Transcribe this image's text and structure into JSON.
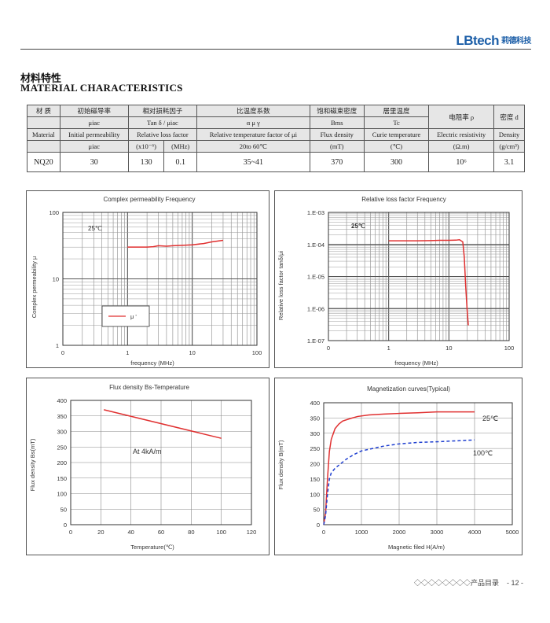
{
  "brand": {
    "logo": "LBtech",
    "logo_cn": "莉德科技"
  },
  "heading": {
    "cn": "材料特性",
    "en": "MATERIAL CHARACTERISTICS"
  },
  "table": {
    "row1": [
      "材 质",
      "初始磁导率",
      "相对损耗因子",
      "比温度系数",
      "饱和磁束密度",
      "居里温度",
      "电阻率 ρ",
      "密度 d"
    ],
    "row2": [
      "μiac",
      "Tan δ / μiac",
      "α μ γ",
      "Bms",
      "Tc"
    ],
    "row3": [
      "Material",
      "Initial permeability",
      "Relative loss factor",
      "Relative temperature factor of μi",
      "Flux density",
      "Curie temperature",
      "Electric resistivity",
      "Density"
    ],
    "row4": [
      "μiac",
      "(x10⁻⁶)",
      "(MHz)",
      "20to 60℃",
      "(mT)",
      "(℃)",
      "(Ω.m)",
      "(g/cm³)"
    ],
    "data": [
      "NQ20",
      "30",
      "130",
      "0.1",
      "35~41",
      "370",
      "300",
      "10⁶",
      "3.1"
    ]
  },
  "charts": {
    "perm": {
      "title": "Complex permeability Frequency",
      "xlabel": "frequency (MHz)",
      "ylabel": "Complex permeability μ",
      "yticks": [
        "100",
        "10",
        "1"
      ],
      "xticks": [
        "0",
        "1",
        "10",
        "100"
      ],
      "annotation": "25℃",
      "legend": "μ '"
    },
    "loss": {
      "title": "Relative loss factor Frequency",
      "xlabel": "frequency (MHz)",
      "ylabel": "Relative loss factor tanδ/μi",
      "yticks": [
        "1.E-03",
        "1.E-04",
        "1.E-05",
        "1.E-06",
        "1.E-07"
      ],
      "xticks": [
        "0",
        "1",
        "10",
        "100"
      ],
      "annotation": "25℃"
    },
    "flux": {
      "title": "Flux density Bs-Temperature",
      "xlabel": "Temperature(℃)",
      "ylabel": "Flux density Bs(mT)",
      "yticks": [
        "400",
        "350",
        "300",
        "250",
        "200",
        "150",
        "100",
        "50",
        "0"
      ],
      "xticks": [
        "0",
        "20",
        "40",
        "60",
        "80",
        "100",
        "120"
      ],
      "annotation": "At 4kA/m"
    },
    "bh": {
      "title": "Magnetization curves(Typical)",
      "xlabel": "Magnetic filed H(A/m)",
      "ylabel": "Flux density B(mT)",
      "yticks": [
        "400",
        "350",
        "300",
        "250",
        "200",
        "150",
        "100",
        "50",
        "0"
      ],
      "xticks": [
        "0",
        "1000",
        "2000",
        "3000",
        "4000",
        "5000"
      ],
      "label_25": "25℃",
      "label_100": "100℃"
    }
  },
  "chart_data": [
    {
      "type": "line",
      "title": "Complex permeability Frequency",
      "xlabel": "frequency (MHz)",
      "ylabel": "Complex permeability μ",
      "xscale": "log",
      "yscale": "log",
      "xlim": [
        0.1,
        100
      ],
      "ylim": [
        1,
        100
      ],
      "series": [
        {
          "name": "μ '",
          "x": [
            1,
            1.5,
            2,
            2.5,
            3,
            4,
            5,
            7,
            10,
            15,
            20,
            30
          ],
          "y": [
            30,
            30,
            30,
            30.5,
            31.5,
            31,
            31.5,
            32,
            32.5,
            34,
            36,
            38
          ]
        }
      ]
    },
    {
      "type": "line",
      "title": "Relative loss factor Frequency",
      "xlabel": "frequency (MHz)",
      "ylabel": "Relative loss factor tanδ/μi",
      "xscale": "log",
      "yscale": "log",
      "xlim": [
        0.1,
        100
      ],
      "ylim": [
        1e-07,
        0.001
      ],
      "series": [
        {
          "name": "25℃",
          "x": [
            1,
            2,
            3,
            5,
            7,
            10,
            13,
            15,
            17,
            18,
            19,
            20,
            21
          ],
          "y": [
            0.00013,
            0.00013,
            0.00013,
            0.000132,
            0.000135,
            0.000135,
            0.000136,
            0.00014,
            0.00012,
            4e-05,
            5e-06,
            1e-06,
            3e-07
          ]
        }
      ]
    },
    {
      "type": "line",
      "title": "Flux density Bs-Temperature",
      "xlabel": "Temperature(℃)",
      "ylabel": "Flux density Bs(mT)",
      "xlim": [
        0,
        120
      ],
      "ylim": [
        0,
        400
      ],
      "series": [
        {
          "name": "At 4kA/m",
          "x": [
            22,
            100
          ],
          "y": [
            370,
            278
          ]
        }
      ]
    },
    {
      "type": "line",
      "title": "Magnetization curves(Typical)",
      "xlabel": "Magnetic filed H(A/m)",
      "ylabel": "Flux density B(mT)",
      "xlim": [
        0,
        5000
      ],
      "ylim": [
        0,
        400
      ],
      "series": [
        {
          "name": "25℃",
          "color": "#e03030",
          "x": [
            0,
            50,
            100,
            150,
            200,
            300,
            400,
            500,
            700,
            900,
            1200,
            1600,
            2000,
            2500,
            3000,
            3500,
            4000
          ],
          "y": [
            0,
            40,
            150,
            240,
            280,
            315,
            330,
            340,
            348,
            355,
            360,
            363,
            365,
            367,
            370,
            370,
            370
          ]
        },
        {
          "name": "100℃",
          "color": "#1f3fd0",
          "x": [
            0,
            50,
            100,
            150,
            200,
            300,
            400,
            600,
            800,
            1000,
            1300,
            1600,
            2000,
            2500,
            3000,
            3500,
            4000
          ],
          "y": [
            0,
            30,
            100,
            150,
            170,
            185,
            195,
            215,
            230,
            242,
            250,
            258,
            265,
            270,
            272,
            275,
            278
          ]
        }
      ]
    }
  ],
  "footer": {
    "text": "◇◇◇◇◇◇◇◇产品目录",
    "page": "- 12 -"
  }
}
